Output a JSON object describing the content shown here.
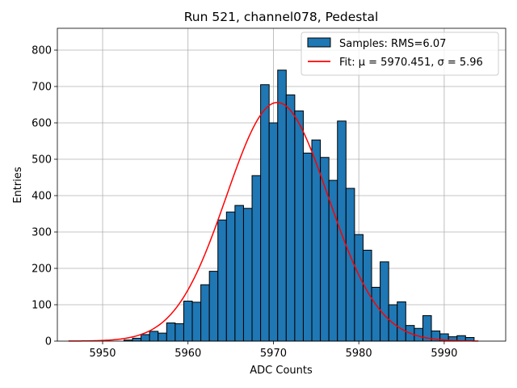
{
  "chart_data": {
    "type": "bar",
    "title": "Run 521, channel078, Pedestal",
    "xlabel": "ADC Counts",
    "ylabel": "Entries",
    "xlim": [
      5944.7,
      5997.2
    ],
    "ylim": [
      0,
      860
    ],
    "xticks": [
      5950,
      5960,
      5970,
      5980,
      5990
    ],
    "yticks": [
      0,
      100,
      200,
      300,
      400,
      500,
      600,
      700,
      800
    ],
    "grid": true,
    "legend_position": "top-right",
    "bar_color": "#1f77b4",
    "bar_edge_color": "#000000",
    "fit_color": "#ff0000",
    "bins": {
      "edges_start": 5947.5,
      "bin_width": 1,
      "counts": [
        0,
        0,
        0,
        0,
        0,
        3,
        8,
        18,
        27,
        22,
        50,
        48,
        110,
        107,
        155,
        192,
        333,
        355,
        373,
        365,
        455,
        705,
        600,
        745,
        677,
        633,
        517,
        553,
        505,
        442,
        605,
        420,
        293,
        250,
        148,
        218,
        100,
        108,
        43,
        35,
        70,
        28,
        20,
        12,
        15,
        10
      ]
    },
    "fit": {
      "mu": 5970.451,
      "sigma": 5.96,
      "amplitude": 656,
      "x_range": [
        5946,
        5994
      ]
    },
    "legend": [
      {
        "label": "Samples: RMS=6.07",
        "kind": "patch"
      },
      {
        "label": "Fit: μ = 5970.451, σ = 5.96",
        "kind": "line"
      }
    ]
  }
}
